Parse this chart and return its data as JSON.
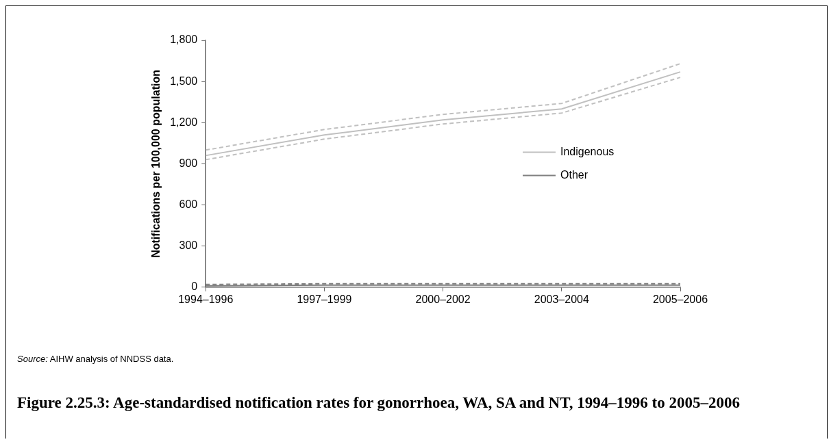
{
  "chart_data": {
    "type": "line",
    "ylabel": "Notifications per 100,000 population",
    "categories": [
      "1994–1996",
      "1997–1999",
      "2000–2002",
      "2003–2004",
      "2005–2006"
    ],
    "series": [
      {
        "name": "Indigenous",
        "color": "#c0c0c0",
        "values": [
          960,
          1110,
          1220,
          1300,
          1570
        ]
      },
      {
        "color": "#c0c0c0",
        "line_style": "dashed",
        "values": [
          930,
          1080,
          1190,
          1270,
          1530
        ]
      },
      {
        "color": "#c0c0c0",
        "line_style": "dashed",
        "values": [
          1000,
          1150,
          1260,
          1340,
          1630
        ]
      },
      {
        "name": "Other",
        "color": "#808080",
        "values": [
          10,
          15,
          15,
          15,
          15
        ]
      },
      {
        "color": "#808080",
        "line_style": "dashed",
        "values": [
          20,
          25,
          25,
          25,
          25
        ]
      }
    ],
    "ylim": [
      0,
      1800
    ],
    "yticks": [
      0,
      300,
      600,
      900,
      {
        "value": 1200,
        "label": "1,200"
      },
      {
        "value": 1500,
        "label": "1,500"
      },
      {
        "value": 1800,
        "label": "1,800"
      }
    ],
    "grid": false,
    "legend": "right",
    "line_style": "solid",
    "marker": "none",
    "annotations": [
      "Source: AIHW analysis of NNDSS data."
    ],
    "title": "Figure 2.25.3: Age-standardised notification rates for gonorrhoea, WA, SA and NT, 1994–1996 to 2005–2006"
  }
}
